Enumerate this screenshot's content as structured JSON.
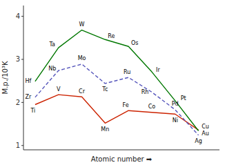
{
  "chart_data": {
    "type": "line",
    "x_label": "Atomic number  ➡",
    "y_label": "M.p./10³K",
    "x": [
      1,
      2,
      3,
      4,
      5,
      6,
      7,
      8
    ],
    "series": [
      {
        "color": "#cc2200",
        "line_style": "solid",
        "labels": [
          "Ti",
          "V",
          "Cr",
          "Mn",
          "Fe",
          "Co",
          "Ni",
          "Cu"
        ],
        "values": [
          1.95,
          2.18,
          2.13,
          1.52,
          1.81,
          1.77,
          1.73,
          1.36
        ]
      },
      {
        "color": "#5555bb",
        "line_style": "dashed",
        "labels": [
          "Zr",
          "Nb",
          "Mo",
          "Tc",
          "Ru",
          "Rh",
          "Pd",
          "Ag"
        ],
        "values": [
          2.12,
          2.74,
          2.89,
          2.44,
          2.58,
          2.24,
          1.83,
          1.24
        ]
      },
      {
        "color": "#007700",
        "line_style": "solid",
        "labels": [
          "Hf",
          "Ta",
          "W",
          "Re",
          "Os",
          "Ir",
          "Pt",
          "Au"
        ],
        "values": [
          2.49,
          3.27,
          3.68,
          3.46,
          3.3,
          2.71,
          2.04,
          1.34
        ]
      }
    ],
    "xlim": [
      0.5,
      8.9
    ],
    "ylim": [
      0.9,
      4.25
    ],
    "yticks": [
      1,
      2,
      3,
      4
    ],
    "grid": false,
    "tick_labels": "y"
  }
}
